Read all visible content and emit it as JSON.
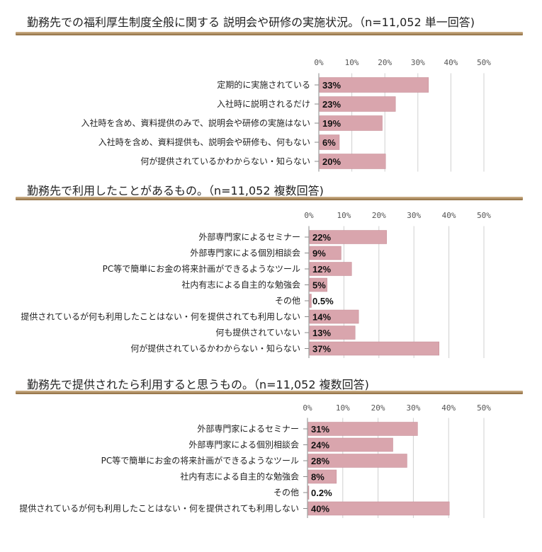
{
  "chart_data": [
    {
      "type": "bar",
      "orientation": "horizontal",
      "title": "勤務先での福利厚生制度全般に関する 説明会や研修の実施状況。（n=11,052 単一回答)",
      "xlim": [
        0,
        50
      ],
      "ticks": [
        "0%",
        "10%",
        "20%",
        "30%",
        "40%",
        "50%"
      ],
      "categories": [
        "定期的に実施されている",
        "入社時に説明されるだけ",
        "入社時を含め、資料提供のみで、説明会や研修の実施はない",
        "入社時を含め、資料提供も、説明会や研修も、何もない",
        "何が提供されているかわからない・知らない"
      ],
      "values": [
        33,
        23,
        19,
        6,
        20
      ],
      "labels": [
        "33%",
        "23%",
        "19%",
        "6%",
        "20%"
      ]
    },
    {
      "type": "bar",
      "orientation": "horizontal",
      "title": "勤務先で利用したことがあるもの。（n=11,052 複数回答)",
      "xlim": [
        0,
        50
      ],
      "ticks": [
        "0%",
        "10%",
        "20%",
        "30%",
        "40%",
        "50%"
      ],
      "categories": [
        "外部専門家によるセミナー",
        "外部専門家による個別相談会",
        "PC等で簡単にお金の将来計画ができるようなツール",
        "社内有志による自主的な勉強会",
        "その他",
        "提供されているが何も利用したことはない・何を提供されても利用しない",
        "何も提供されていない",
        "何が提供されているかわからない・知らない"
      ],
      "values": [
        22,
        9,
        12,
        5,
        0.5,
        14,
        13,
        37
      ],
      "labels": [
        "22%",
        "9%",
        "12%",
        "5%",
        "0.5%",
        "14%",
        "13%",
        "37%"
      ]
    },
    {
      "type": "bar",
      "orientation": "horizontal",
      "title": "勤務先で提供されたら利用すると思うもの。（n=11,052 複数回答)",
      "xlim": [
        0,
        50
      ],
      "ticks": [
        "0%",
        "10%",
        "20%",
        "30%",
        "40%",
        "50%"
      ],
      "categories": [
        "外部専門家によるセミナー",
        "外部専門家による個別相談会",
        "PC等で簡単にお金の将来計画ができるようなツール",
        "社内有志による自主的な勉強会",
        "その他",
        "提供されているが何も利用したことはない・何を提供されても利用しない"
      ],
      "values": [
        31,
        24,
        28,
        8,
        0.2,
        40
      ],
      "labels": [
        "31%",
        "24%",
        "28%",
        "8%",
        "0.2%",
        "40%"
      ]
    }
  ],
  "colors": {
    "bar": "#d9a5ad",
    "bar_border": "#c48a94",
    "rule": "#a07c4c",
    "grid": "#d0d0d0"
  }
}
